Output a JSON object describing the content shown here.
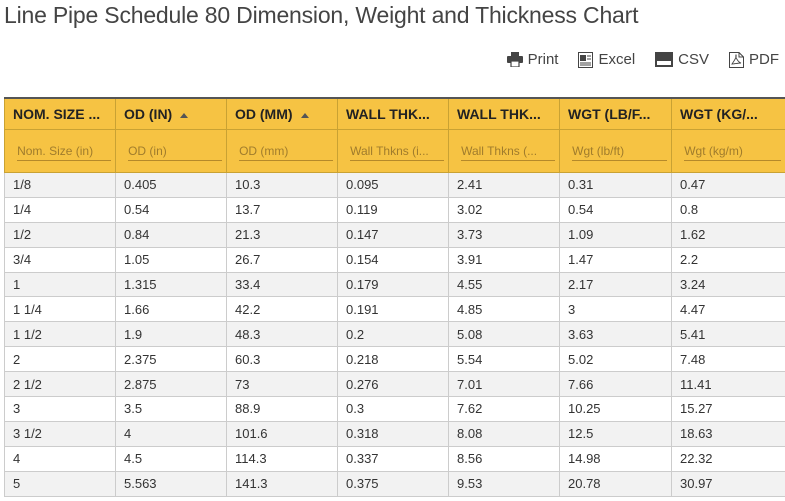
{
  "title": "Line Pipe Schedule 80 Dimension, Weight and Thickness Chart",
  "toolbar": {
    "print": "Print",
    "excel": "Excel",
    "csv": "CSV",
    "pdf": "PDF"
  },
  "columns": [
    {
      "header": "NOM. SIZE ...",
      "filter": "Nom. Size (in)",
      "sort": false
    },
    {
      "header": "OD (IN)",
      "filter": "OD (in)",
      "sort": true
    },
    {
      "header": "OD (MM)",
      "filter": "OD (mm)",
      "sort": true
    },
    {
      "header": "WALL THK...",
      "filter": "Wall Thkns (i...",
      "sort": false
    },
    {
      "header": "WALL THK...",
      "filter": "Wall Thkns (...",
      "sort": false
    },
    {
      "header": "WGT (LB/F...",
      "filter": "Wgt (lb/ft)",
      "sort": false
    },
    {
      "header": "WGT (KG/...",
      "filter": "Wgt (kg/m)",
      "sort": false
    }
  ],
  "rows": [
    [
      "1/8",
      "0.405",
      "10.3",
      "0.095",
      "2.41",
      "0.31",
      "0.47"
    ],
    [
      "1/4",
      "0.54",
      "13.7",
      "0.119",
      "3.02",
      "0.54",
      "0.8"
    ],
    [
      "1/2",
      "0.84",
      "21.3",
      "0.147",
      "3.73",
      "1.09",
      "1.62"
    ],
    [
      "3/4",
      "1.05",
      "26.7",
      "0.154",
      "3.91",
      "1.47",
      "2.2"
    ],
    [
      "1",
      "1.315",
      "33.4",
      "0.179",
      "4.55",
      "2.17",
      "3.24"
    ],
    [
      "1 1/4",
      "1.66",
      "42.2",
      "0.191",
      "4.85",
      "3",
      "4.47"
    ],
    [
      "1 1/2",
      "1.9",
      "48.3",
      "0.2",
      "5.08",
      "3.63",
      "5.41"
    ],
    [
      "2",
      "2.375",
      "60.3",
      "0.218",
      "5.54",
      "5.02",
      "7.48"
    ],
    [
      "2 1/2",
      "2.875",
      "73",
      "0.276",
      "7.01",
      "7.66",
      "11.41"
    ],
    [
      "3",
      "3.5",
      "88.9",
      "0.3",
      "7.62",
      "10.25",
      "15.27"
    ],
    [
      "3 1/2",
      "4",
      "101.6",
      "0.318",
      "8.08",
      "12.5",
      "18.63"
    ],
    [
      "4",
      "4.5",
      "114.3",
      "0.337",
      "8.56",
      "14.98",
      "22.32"
    ],
    [
      "5",
      "5.563",
      "141.3",
      "0.375",
      "9.53",
      "20.78",
      "30.97"
    ]
  ]
}
